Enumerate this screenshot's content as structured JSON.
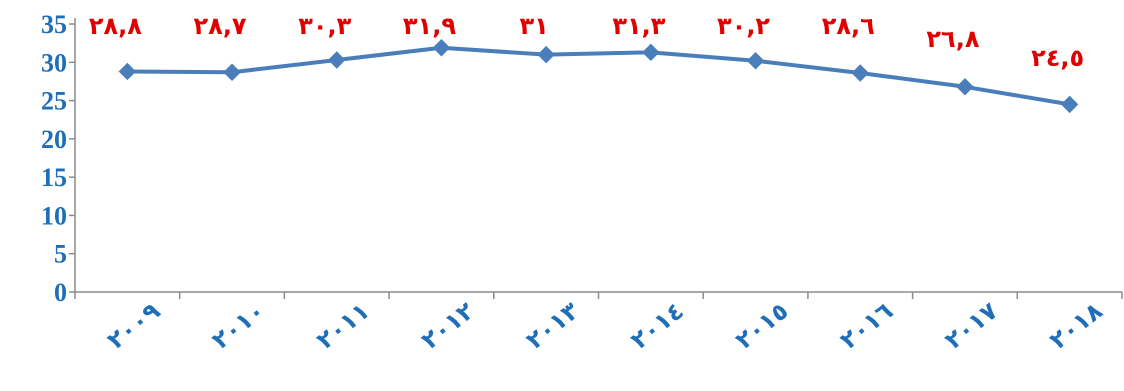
{
  "chart_data": {
    "type": "line",
    "categories": [
      "٢٠٠٩",
      "٢٠١٠",
      "٢٠١١",
      "٢٠١٢",
      "٢٠١٣",
      "٢٠١٤",
      "٢٠١٥",
      "٢٠١٦",
      "٢٠١٧",
      "٢٠١٨"
    ],
    "x": [
      2009,
      2010,
      2011,
      2012,
      2013,
      2014,
      2015,
      2016,
      2017,
      2018
    ],
    "series": [
      {
        "values": [
          28.8,
          28.7,
          30.3,
          31.9,
          31,
          31.3,
          30.2,
          28.6,
          26.8,
          24.5
        ],
        "data_labels": [
          "٢٨,٨",
          "٢٨,٧",
          "٣٠,٣",
          "٣١,٩",
          "٣١",
          "٣١,٣",
          "٣٠,٢",
          "٢٨,٦",
          "٢٦,٨",
          "٢٤,٥"
        ],
        "color": "#4a7ebb",
        "marker": "diamond"
      }
    ],
    "yticks": [
      "0",
      "5",
      "10",
      "15",
      "20",
      "25",
      "30",
      "35"
    ],
    "ylim": [
      0,
      35
    ],
    "grid": false,
    "legend": "none",
    "title": "",
    "xlabel": "",
    "ylabel": "",
    "colors": {
      "line": "#4a7ebb",
      "marker": "#4a7ebb",
      "axis_labels": "#1f6fb8",
      "data_labels": "#e00000",
      "axis": "#8c8c8c"
    }
  }
}
